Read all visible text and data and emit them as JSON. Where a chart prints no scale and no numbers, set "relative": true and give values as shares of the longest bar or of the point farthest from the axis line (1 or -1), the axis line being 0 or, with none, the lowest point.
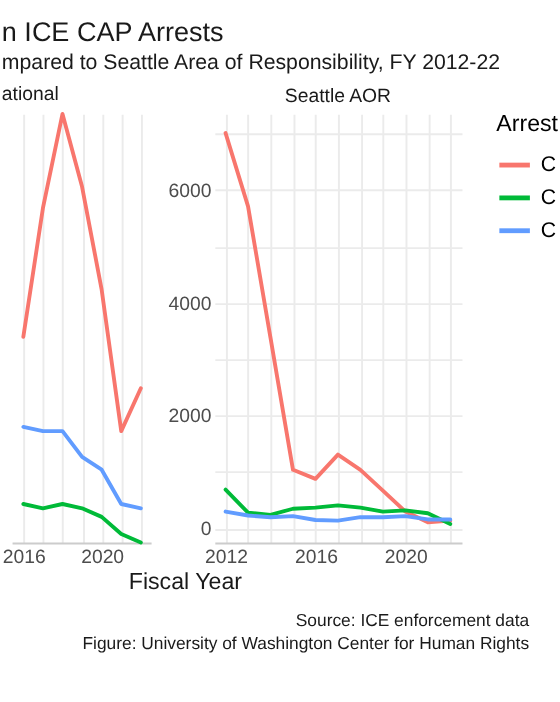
{
  "chart_data": [
    {
      "type": "line",
      "title": "n ICE CAP Arrests",
      "subtitle": "mpared to Seattle Area of Responsibility, FY 2012-22",
      "xlabel": "Fiscal Year",
      "annotations": [
        "ational",
        "Source: ICE enforcement data",
        "Figure: University of Washington Center for Human Rights"
      ],
      "relative": true,
      "tick_labels": "x",
      "grid": true,
      "x": [
        2016,
        2017,
        2018,
        2019,
        2020,
        2021,
        2022
      ],
      "xlim": [
        2015.4,
        2022.5
      ],
      "xticks": [
        2016,
        {
          "value": 2017,
          "label": null
        },
        {
          "value": 2018,
          "label": null
        },
        {
          "value": 2019,
          "label": null
        },
        2020,
        {
          "value": 2021,
          "label": null
        },
        {
          "value": 2022,
          "label": null
        }
      ],
      "series": [
        {
          "color": "#f8766d",
          "values": [
            0.48,
            0.78,
            1,
            0.83,
            0.59,
            0.26,
            0.36
          ]
        },
        {
          "color": "#00ba38",
          "values": [
            0.09,
            0.08,
            0.09,
            0.08,
            0.06,
            0.02,
            0
          ]
        },
        {
          "color": "#619cff",
          "values": [
            0.27,
            0.26,
            0.26,
            0.2,
            0.17,
            0.09,
            0.08
          ]
        }
      ]
    },
    {
      "type": "line",
      "title": "Seattle AOR",
      "legend_title": "Arrest",
      "legend": "right",
      "grid": true,
      "x": [
        2012,
        2013,
        2014,
        2015,
        2016,
        2017,
        2018,
        2019,
        2020,
        2021,
        2022
      ],
      "xlim": [
        2011.5,
        2022.5
      ],
      "ylim": [
        -250,
        7350
      ],
      "xticks": [
        2012,
        {
          "value": 2013,
          "label": null
        },
        {
          "value": 2014,
          "label": null
        },
        {
          "value": 2015,
          "label": null
        },
        2016,
        {
          "value": 2017,
          "label": null
        },
        {
          "value": 2018,
          "label": null
        },
        {
          "value": 2019,
          "label": null
        },
        2020,
        {
          "value": 2021,
          "label": null
        },
        {
          "value": 2022,
          "label": null
        }
      ],
      "yticks": [
        0,
        {
          "value": 1000,
          "label": null
        },
        2000,
        {
          "value": 3000,
          "label": null
        },
        4000,
        {
          "value": 5000,
          "label": null
        },
        6000,
        {
          "value": 7000,
          "label": null
        }
      ],
      "series": [
        {
          "name": "C",
          "color": "#f8766d",
          "values": [
            7010,
            5710,
            3380,
            1040,
            880,
            1310,
            1040,
            670,
            300,
            110,
            140
          ]
        },
        {
          "name": "C",
          "color": "#00ba38",
          "values": [
            690,
            280,
            240,
            350,
            370,
            410,
            370,
            300,
            320,
            270,
            80
          ]
        },
        {
          "name": "C",
          "color": "#619cff",
          "values": [
            300,
            230,
            200,
            220,
            150,
            140,
            200,
            200,
            220,
            160,
            160
          ]
        }
      ]
    }
  ]
}
